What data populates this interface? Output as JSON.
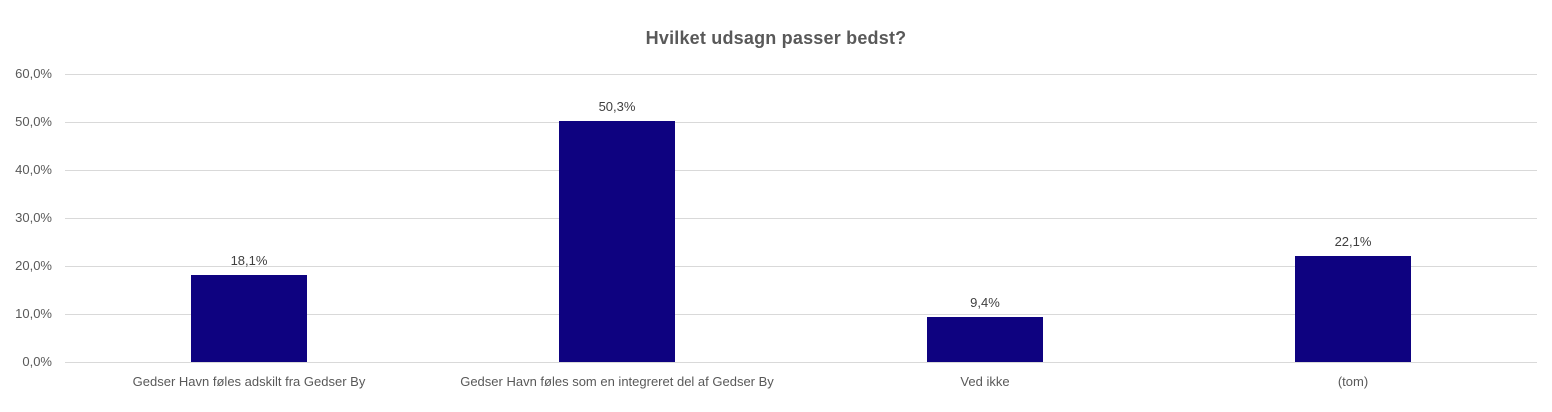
{
  "chart_data": {
    "type": "bar",
    "title": "Hvilket udsagn passer bedst?",
    "categories": [
      "Gedser Havn føles adskilt fra Gedser By",
      "Gedser Havn føles som en integreret del af Gedser By",
      "Ved ikke",
      "(tom)"
    ],
    "values": [
      18.1,
      50.3,
      9.4,
      22.1
    ],
    "value_labels": [
      "18,1%",
      "50,3%",
      "9,4%",
      "22,1%"
    ],
    "ytick_values": [
      0,
      10,
      20,
      30,
      40,
      50,
      60
    ],
    "ytick_labels": [
      "0,0%",
      "10,0%",
      "20,0%",
      "30,0%",
      "40,0%",
      "50,0%",
      "60,0%"
    ],
    "ylim": [
      0,
      60
    ],
    "xlabel": "",
    "ylabel": "",
    "grid": true,
    "legend_position": "none",
    "colors": {
      "bar": "#0E0280",
      "gridline": "#D9D9D9",
      "axis_line": "#D9D9D9",
      "title_text": "#595959",
      "tick_text": "#595959",
      "category_text": "#595959",
      "data_label_text": "#3F3F3F",
      "background": "#FFFFFF"
    }
  }
}
